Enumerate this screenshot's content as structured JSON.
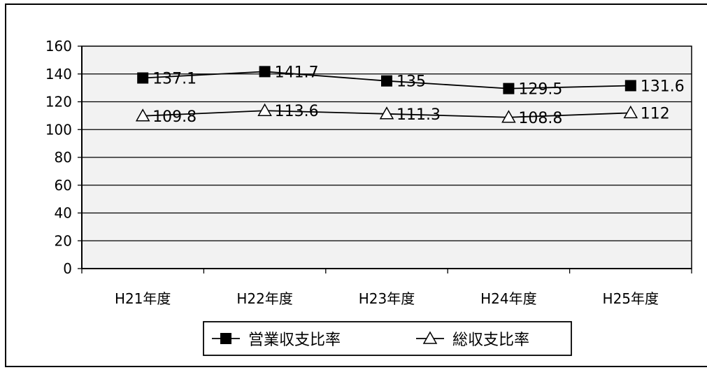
{
  "chart_data": {
    "type": "line",
    "title": "",
    "xlabel": "",
    "ylabel": "",
    "categories": [
      "H21年度",
      "H22年度",
      "H23年度",
      "H24年度",
      "H25年度"
    ],
    "ylim": [
      0,
      160
    ],
    "yticks": [
      0,
      20,
      40,
      60,
      80,
      100,
      120,
      140,
      160
    ],
    "grid": true,
    "legend_position": "bottom",
    "plot_background": "#f2f2f2",
    "series": [
      {
        "name": "営業収支比率",
        "marker": "filled-square",
        "color": "#000000",
        "values": [
          137.1,
          141.7,
          135,
          129.5,
          131.6
        ],
        "labels": [
          "137.1",
          "141.7",
          "135",
          "129.5",
          "131.6"
        ]
      },
      {
        "name": "総収支比率",
        "marker": "open-triangle",
        "color": "#000000",
        "values": [
          109.8,
          113.6,
          111.3,
          108.8,
          112
        ],
        "labels": [
          "109.8",
          "113.6",
          "111.3",
          "108.8",
          "112"
        ]
      }
    ]
  }
}
